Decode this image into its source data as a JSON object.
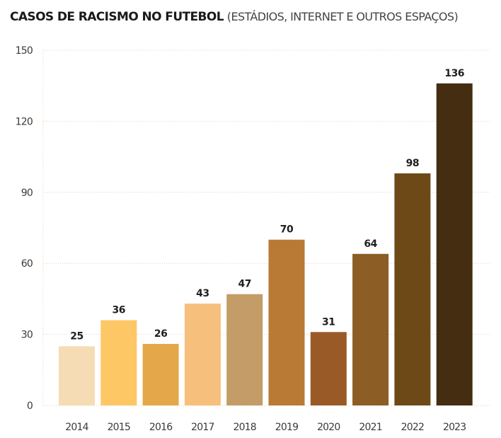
{
  "chart_data": {
    "type": "bar",
    "title": "CASOS DE RACISMO NO FUTEBOL",
    "subtitle": "(ESTÁDIOS, INTERNET E OUTROS ESPAÇOS)",
    "xlabel": "",
    "ylabel": "",
    "categories": [
      "2014",
      "2015",
      "2016",
      "2017",
      "2018",
      "2019",
      "2020",
      "2021",
      "2022",
      "2023"
    ],
    "values": [
      25,
      36,
      26,
      43,
      47,
      70,
      31,
      64,
      98,
      136
    ],
    "data_labels": [
      "25",
      "36",
      "26",
      "43",
      "47",
      "70",
      "31",
      "64",
      "98",
      "136"
    ],
    "colors": [
      "#f6dcb4",
      "#fdc766",
      "#e4a84a",
      "#f7bf7c",
      "#c49c68",
      "#b97a35",
      "#9a5a28",
      "#8c5d25",
      "#6e4918",
      "#452d12"
    ],
    "ylim": [
      0,
      150
    ],
    "yticks": [
      0,
      30,
      60,
      90,
      120,
      150
    ],
    "ytick_labels": [
      "0",
      "30",
      "60",
      "90",
      "120",
      "150"
    ],
    "grid": true,
    "grid_color": "#f3c9b8",
    "legend": "none"
  }
}
